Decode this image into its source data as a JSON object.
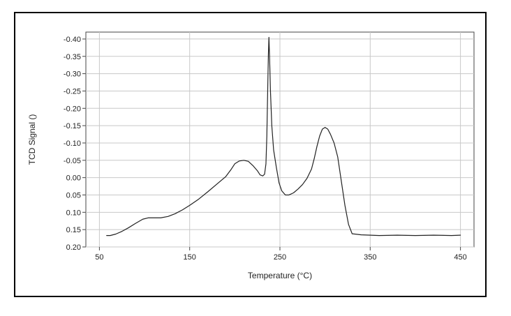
{
  "chart_data": {
    "type": "line",
    "title": "",
    "xlabel": "Temperature (°C)",
    "ylabel": "TCD Signal ()",
    "xlim": [
      35,
      465
    ],
    "ylim": [
      0.2,
      -0.42
    ],
    "y_inverted": true,
    "grid": true,
    "legend": "none",
    "x_ticks": [
      50,
      150,
      250,
      350,
      450
    ],
    "x_tick_labels": [
      "50",
      "150",
      "250",
      "350",
      "450"
    ],
    "y_ticks": [
      -0.4,
      -0.35,
      -0.3,
      -0.25,
      -0.2,
      -0.15,
      -0.1,
      -0.05,
      0.0,
      0.05,
      0.1,
      0.15,
      0.2
    ],
    "y_tick_labels": [
      "-0.40",
      "-0.35",
      "-0.30",
      "-0.25",
      "-0.20",
      "-0.15",
      "-0.10",
      "-0.05",
      "0.00",
      "0.05",
      "0.10",
      "0.15",
      "0.20"
    ],
    "line_color": "#222222",
    "series": [
      {
        "x": [
          58,
          62,
          68,
          75,
          82,
          90,
          98,
          104,
          110,
          118,
          126,
          134,
          142,
          150,
          160,
          170,
          180,
          190,
          196,
          200,
          205,
          210,
          215,
          220,
          225,
          228,
          231,
          233,
          234.5,
          235.5,
          236.5,
          237.2,
          237.8,
          238.5,
          239.5,
          241,
          243,
          246,
          249,
          252,
          256,
          260,
          265,
          270,
          275,
          280,
          285,
          288,
          291,
          294,
          297,
          300,
          303,
          306,
          310,
          314,
          318,
          322,
          326,
          330,
          340,
          360,
          380,
          400,
          420,
          440,
          450
        ],
        "y": [
          0.167,
          0.167,
          0.163,
          0.155,
          0.145,
          0.132,
          0.12,
          0.116,
          0.116,
          0.116,
          0.112,
          0.104,
          0.093,
          0.08,
          0.062,
          0.041,
          0.019,
          -0.003,
          -0.024,
          -0.04,
          -0.048,
          -0.05,
          -0.047,
          -0.035,
          -0.02,
          -0.008,
          -0.005,
          -0.01,
          -0.04,
          -0.12,
          -0.26,
          -0.355,
          -0.405,
          -0.35,
          -0.25,
          -0.15,
          -0.08,
          -0.03,
          0.015,
          0.038,
          0.05,
          0.05,
          0.044,
          0.033,
          0.02,
          0.002,
          -0.025,
          -0.055,
          -0.09,
          -0.12,
          -0.14,
          -0.145,
          -0.14,
          -0.125,
          -0.1,
          -0.06,
          0.01,
          0.08,
          0.135,
          0.162,
          0.165,
          0.167,
          0.166,
          0.167,
          0.166,
          0.167,
          0.166
        ]
      }
    ]
  }
}
